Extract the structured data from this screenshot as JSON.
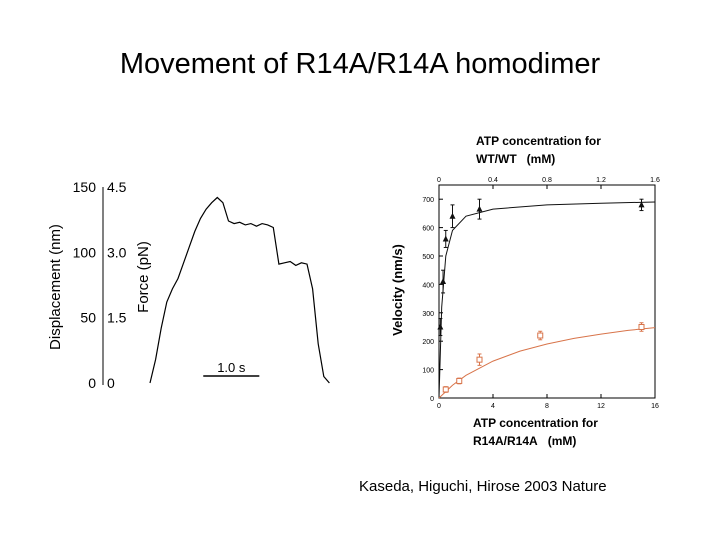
{
  "slide": {
    "title": "Movement of R14A/R14A homodimer",
    "citation": "Kaseda, Higuchi, Hirose 2003 Nature"
  },
  "colors": {
    "wt_series": "#111111",
    "mutant_series": "#d8744a",
    "axis": "#000000"
  },
  "chart_data": [
    {
      "type": "line",
      "ylabel": "Displacement (nm)",
      "y2label": "Force (pN)",
      "ylim": [
        0,
        150
      ],
      "y_ticks": [
        0,
        50,
        100,
        150
      ],
      "y_tick_labels": [
        "0",
        "50",
        "100",
        "150"
      ],
      "y2lim": [
        0,
        4.5
      ],
      "y2_ticks": [
        0,
        1.5,
        3.0,
        4.5
      ],
      "y2_tick_labels": [
        "0",
        "1.5",
        "3.0",
        "4.5"
      ],
      "xlim": [
        0,
        3.3
      ],
      "scale_bar": {
        "label": "1.0 s",
        "length": 1.0
      },
      "series": [
        {
          "x": [
            0,
            0.1,
            0.2,
            0.3,
            0.4,
            0.5,
            0.6,
            0.7,
            0.8,
            0.9,
            1.0,
            1.1,
            1.2,
            1.3,
            1.4,
            1.5,
            1.6,
            1.7,
            1.8,
            1.9,
            2.0,
            2.1,
            2.2,
            2.3,
            2.4,
            2.5,
            2.6,
            2.7,
            2.8,
            2.9,
            3.0,
            3.1,
            3.2
          ],
          "values": [
            0,
            18,
            42,
            62,
            72,
            80,
            92,
            104,
            116,
            126,
            133,
            138,
            142,
            138,
            124,
            122,
            123,
            121,
            122,
            120,
            122,
            121,
            119,
            91,
            92,
            93,
            90,
            92,
            91,
            72,
            30,
            5,
            0
          ]
        }
      ]
    },
    {
      "type": "scatter",
      "ylabel": "Velocity (nm/s)",
      "ylim": [
        0,
        750
      ],
      "y_ticks": [
        0,
        100,
        200,
        300,
        400,
        500,
        600,
        700
      ],
      "y_tick_labels": [
        "0",
        "100",
        "200",
        "300",
        "400",
        "500",
        "600",
        "700"
      ],
      "top_axis": {
        "label": "ATP concentration for WT/WT (mM)",
        "lim": [
          0,
          1.6
        ],
        "ticks": [
          0,
          0.4,
          0.8,
          1.2,
          1.6
        ],
        "tick_labels": [
          "0",
          "0.4",
          "0.8",
          "1.2",
          "1.6"
        ]
      },
      "bottom_axis": {
        "label": "ATP concentration for R14A/R14A (mM)",
        "lim": [
          0,
          16
        ],
        "ticks": [
          0,
          4,
          8,
          12,
          16
        ],
        "tick_labels": [
          "0",
          "4",
          "8",
          "12",
          "16"
        ]
      },
      "series": [
        {
          "axis": "top",
          "marker": "filled-triangle",
          "x": [
            0.01,
            0.03,
            0.05,
            0.1,
            0.3,
            1.5
          ],
          "values": [
            250,
            410,
            560,
            640,
            665,
            680
          ],
          "errors": [
            30,
            40,
            30,
            40,
            35,
            20
          ],
          "fit": [
            [
              0,
              0
            ],
            [
              0.02,
              320
            ],
            [
              0.05,
              500
            ],
            [
              0.1,
              590
            ],
            [
              0.2,
              640
            ],
            [
              0.4,
              665
            ],
            [
              0.8,
              680
            ],
            [
              1.2,
              686
            ],
            [
              1.6,
              690
            ]
          ]
        },
        {
          "axis": "bottom",
          "marker": "open-square",
          "x": [
            0.5,
            1.5,
            3,
            7.5,
            15
          ],
          "values": [
            30,
            60,
            135,
            220,
            250
          ],
          "errors": [
            10,
            10,
            20,
            15,
            15
          ],
          "fit": [
            [
              0,
              0
            ],
            [
              1,
              45
            ],
            [
              2,
              80
            ],
            [
              4,
              130
            ],
            [
              6,
              165
            ],
            [
              8,
              190
            ],
            [
              10,
              210
            ],
            [
              12,
              225
            ],
            [
              14,
              238
            ],
            [
              16,
              248
            ]
          ]
        }
      ]
    }
  ]
}
